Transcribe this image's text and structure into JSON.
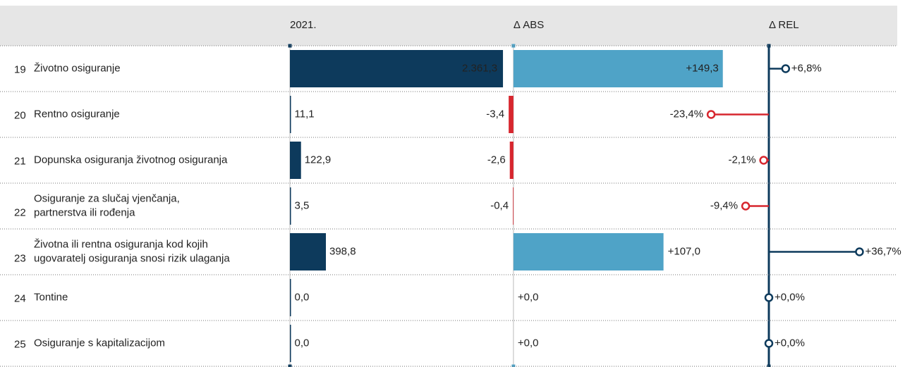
{
  "chart_data": {
    "type": "bartable",
    "colors": {
      "total": "#0d3a5c",
      "positive": "#4fa3c7",
      "negative": "#d7262e",
      "rel_positive": "#0d3a5c",
      "rel_negative": "#d7262e"
    },
    "columns": [
      {
        "header": "2021.",
        "xlim": [
          0,
          2400
        ]
      },
      {
        "header": "Δ ABS",
        "xlim": [
          -10,
          160
        ]
      },
      {
        "header": "Δ REL",
        "xlim": [
          -30,
          40
        ]
      }
    ],
    "rows": [
      {
        "id": 19,
        "label": [
          "Životno osiguranje"
        ]
      },
      {
        "id": 20,
        "label": [
          "Rentno osiguranje"
        ]
      },
      {
        "id": 21,
        "label": [
          "Dopunska osiguranja životnog osiguranja"
        ]
      },
      {
        "id": 22,
        "label": [
          "Osiguranje za slučaj vjenčanja,",
          "partnerstva ili rođenja"
        ]
      },
      {
        "id": 23,
        "label": [
          "Životna ili rentna osiguranja kod kojih",
          "ugovaratelj osiguranja snosi rizik ulaganja"
        ]
      },
      {
        "id": 24,
        "label": [
          "Tontine"
        ]
      },
      {
        "id": 25,
        "label": [
          "Osiguranje s kapitalizacijom"
        ]
      }
    ],
    "series": [
      {
        "name": "2021.",
        "values": [
          2361.3,
          11.1,
          122.9,
          3.5,
          398.8,
          0.0,
          0.0
        ],
        "value_labels": [
          "2.361,3",
          "11,1",
          "122,9",
          "3,5",
          "398,8",
          "0,0",
          "0,0"
        ]
      },
      {
        "name": "Δ ABS",
        "values": [
          149.3,
          -3.4,
          -2.6,
          -0.4,
          107.0,
          0.0,
          0.0
        ],
        "value_labels": [
          "+149,3",
          "-3,4",
          "-2,6",
          "-0,4",
          "+107,0",
          "+0,0",
          "+0,0"
        ]
      },
      {
        "name": "Δ REL",
        "values": [
          6.8,
          -23.4,
          -2.1,
          -9.4,
          36.7,
          0.0,
          0.0
        ],
        "value_labels": [
          "+6,8%",
          "-23,4%",
          "-2,1%",
          "-9,4%",
          "+36,7%",
          "+0,0%",
          "+0,0%"
        ]
      }
    ]
  }
}
